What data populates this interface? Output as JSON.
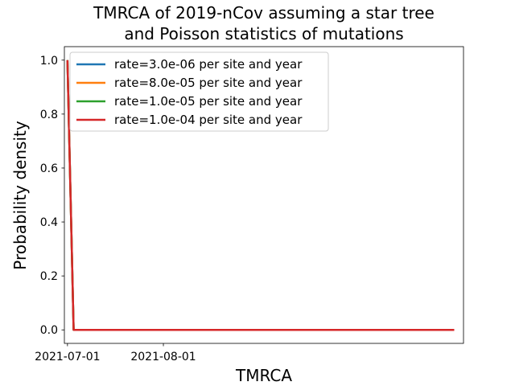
{
  "chart_data": {
    "type": "line",
    "title": [
      "TMRCA of 2019-nCov assuming a star tree",
      "and Poisson statistics of mutations"
    ],
    "xlabel": "TMRCA",
    "ylabel": "Probability density",
    "x_ticks": [
      {
        "label": "2021-07-01",
        "date": "2021-07-01"
      },
      {
        "label": "2021-08-01",
        "date": "2021-08-01"
      }
    ],
    "y_ticks": [
      0.0,
      0.2,
      0.4,
      0.6,
      0.8,
      1.0
    ],
    "y_tick_labels": [
      "0.0",
      "0.2",
      "0.4",
      "0.6",
      "0.8",
      "1.0"
    ],
    "xlim": [
      "2021-06-30",
      "2021-11-06"
    ],
    "ylim": [
      -0.05,
      1.05
    ],
    "grid": false,
    "legend_position": "upper-left",
    "series": [
      {
        "name": "rate=3.0e-06 per site and year",
        "color": "#1f77b4",
        "x": [
          "2021-07-01",
          "2021-07-03",
          "2021-11-03"
        ],
        "y": [
          1.0,
          0.0,
          0.0
        ]
      },
      {
        "name": "rate=8.0e-05 per site and year",
        "color": "#ff7f0e",
        "x": [
          "2021-07-01",
          "2021-07-03",
          "2021-11-03"
        ],
        "y": [
          1.0,
          0.0,
          0.0
        ]
      },
      {
        "name": "rate=1.0e-05 per site and year",
        "color": "#2ca02c",
        "x": [
          "2021-07-01",
          "2021-07-03",
          "2021-11-03"
        ],
        "y": [
          1.0,
          0.0,
          0.0
        ]
      },
      {
        "name": "rate=1.0e-04 per site and year",
        "color": "#d62728",
        "x": [
          "2021-07-01",
          "2021-07-03",
          "2021-11-03"
        ],
        "y": [
          1.0,
          0.0,
          0.0
        ]
      }
    ]
  }
}
